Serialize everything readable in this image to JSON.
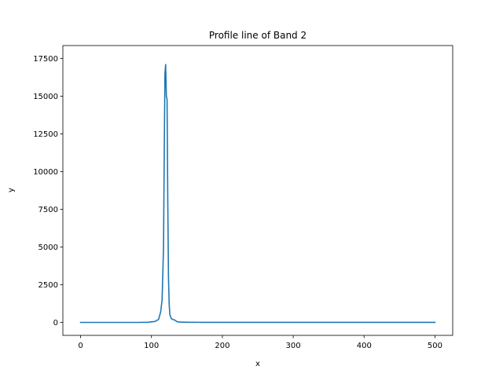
{
  "chart_data": {
    "type": "line",
    "title": "Profile line of Band 2",
    "xlabel": "x",
    "ylabel": "y",
    "xlim": [
      -25,
      525
    ],
    "ylim": [
      -860,
      18360
    ],
    "xticks": [
      0,
      100,
      200,
      300,
      400,
      500
    ],
    "yticks": [
      0,
      2500,
      5000,
      7500,
      10000,
      12500,
      15000,
      17500
    ],
    "grid": false,
    "line_color": "#1f77b4",
    "series": [
      {
        "x": [
          0,
          20,
          40,
          60,
          80,
          95,
          105,
          110,
          113,
          115,
          117,
          118,
          119,
          120,
          121,
          122,
          123,
          124,
          125,
          126,
          128,
          130,
          133,
          136,
          140,
          150,
          170,
          200,
          250,
          300,
          350,
          400,
          450,
          500
        ],
        "values": [
          0,
          0,
          0,
          0,
          0,
          10,
          60,
          200,
          700,
          1500,
          5000,
          11000,
          16500,
          17100,
          15000,
          14800,
          8000,
          3000,
          1200,
          500,
          250,
          200,
          150,
          50,
          20,
          10,
          5,
          3,
          3,
          2,
          2,
          2,
          2,
          2
        ]
      }
    ]
  }
}
